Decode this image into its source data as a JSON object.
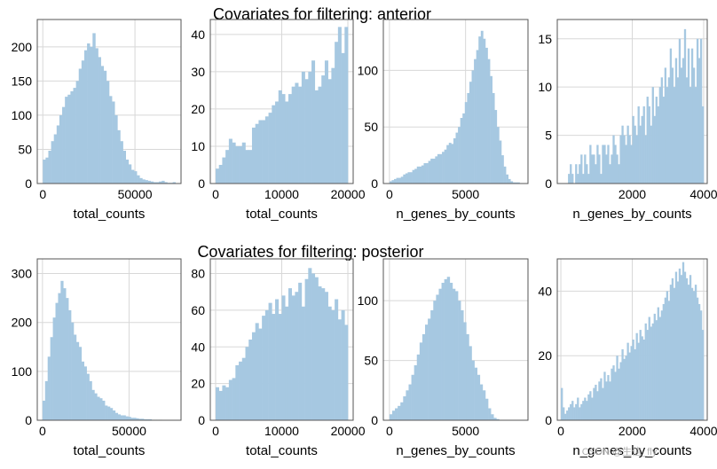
{
  "watermark": "CSDN @生信_fly",
  "colors": {
    "bar": "#a6c8e1",
    "grid": "#d8d8d8",
    "frame": "#555555"
  },
  "titles": [
    "Covariates for filtering: anterior",
    "Covariates for filtering: posterior"
  ],
  "chart_data": [
    {
      "type": "histogram",
      "row": 0,
      "col": 0,
      "xlabel": "total_counts",
      "ylabel": "",
      "xlim": [
        -3000,
        75000
      ],
      "ylim": [
        0,
        240
      ],
      "xticks": [
        0,
        50000
      ],
      "xtick_labels": [
        "0",
        "50000"
      ],
      "yticks": [
        0,
        50,
        100,
        150,
        200
      ],
      "ytick_labels": [
        "0",
        "50",
        "100",
        "150",
        "200"
      ],
      "bin_start": 0,
      "bin_width": 1500,
      "values": [
        35,
        38,
        48,
        62,
        72,
        85,
        100,
        112,
        127,
        130,
        135,
        140,
        150,
        168,
        180,
        195,
        205,
        200,
        220,
        198,
        185,
        172,
        165,
        150,
        128,
        120,
        100,
        78,
        62,
        48,
        35,
        28,
        20,
        18,
        12,
        8,
        6,
        5,
        4,
        3,
        2,
        2,
        3,
        4,
        2,
        1,
        1,
        2
      ]
    },
    {
      "type": "histogram",
      "row": 0,
      "col": 1,
      "xlabel": "total_counts",
      "ylabel": "",
      "xlim": [
        -800,
        20800
      ],
      "ylim": [
        0,
        44
      ],
      "xticks": [
        0,
        10000,
        20000
      ],
      "xtick_labels": [
        "0",
        "10000",
        "20000"
      ],
      "yticks": [
        0,
        10,
        20,
        30,
        40
      ],
      "ytick_labels": [
        "0",
        "10",
        "20",
        "30",
        "40"
      ],
      "bin_start": 0,
      "bin_width": 500,
      "values": [
        4,
        5,
        7,
        9,
        12,
        11,
        10,
        10,
        11,
        9,
        9,
        15,
        16,
        17,
        17,
        18,
        19,
        21,
        22,
        25,
        24,
        22,
        24,
        26,
        27,
        26,
        30,
        28,
        30,
        33,
        25,
        26,
        29,
        33,
        28,
        31,
        38,
        42,
        35,
        42
      ]
    },
    {
      "type": "histogram",
      "row": 0,
      "col": 2,
      "xlabel": "n_genes_by_counts",
      "ylabel": "",
      "xlim": [
        -400,
        9100
      ],
      "ylim": [
        0,
        145
      ],
      "xticks": [
        0,
        5000
      ],
      "xtick_labels": [
        "0",
        "5000"
      ],
      "yticks": [
        0,
        50,
        100
      ],
      "ytick_labels": [
        "0",
        "50",
        "100"
      ],
      "bin_start": 0,
      "bin_width": 150,
      "values": [
        2,
        3,
        4,
        5,
        5,
        6,
        8,
        9,
        10,
        10,
        12,
        13,
        15,
        15,
        16,
        18,
        18,
        20,
        22,
        22,
        24,
        26,
        26,
        28,
        30,
        34,
        36,
        35,
        40,
        45,
        50,
        58,
        62,
        72,
        80,
        90,
        100,
        110,
        118,
        130,
        135,
        128,
        120,
        110,
        95,
        80,
        65,
        50,
        38,
        25,
        15,
        8,
        4,
        2,
        1,
        1,
        1
      ]
    },
    {
      "type": "histogram",
      "row": 0,
      "col": 3,
      "xlabel": "n_genes_by_counts",
      "ylabel": "",
      "xlim": [
        -100,
        4100
      ],
      "ylim": [
        0,
        17
      ],
      "xticks": [
        2000,
        4000
      ],
      "xtick_labels": [
        "2000",
        "4000"
      ],
      "yticks": [
        0,
        5,
        10,
        15
      ],
      "ytick_labels": [
        "0",
        "5",
        "10",
        "15"
      ],
      "bin_start": 200,
      "bin_width": 50,
      "values": [
        1,
        2,
        1,
        0,
        2,
        1,
        2,
        3,
        1,
        3,
        2,
        1,
        4,
        3,
        3,
        2,
        4,
        3,
        1,
        4,
        4,
        3,
        4,
        2,
        3,
        5,
        4,
        3,
        2,
        5,
        6,
        5,
        4,
        6,
        5,
        4,
        7,
        6,
        5,
        8,
        6,
        7,
        8,
        5,
        9,
        8,
        6,
        10,
        7,
        9,
        8,
        10,
        11,
        9,
        12,
        10,
        11,
        14,
        12,
        10,
        13,
        11,
        15,
        12,
        13,
        16,
        11,
        14,
        10,
        14,
        12,
        10,
        15,
        13,
        15,
        8
      ]
    },
    {
      "type": "histogram",
      "row": 1,
      "col": 0,
      "xlabel": "total_counts",
      "ylabel": "",
      "xlim": [
        -3000,
        80000
      ],
      "ylim": [
        0,
        330
      ],
      "xticks": [
        0,
        50000
      ],
      "xtick_labels": [
        "0",
        "50000"
      ],
      "yticks": [
        0,
        100,
        200,
        300
      ],
      "ytick_labels": [
        "0",
        "100",
        "200",
        "300"
      ],
      "bin_start": 0,
      "bin_width": 1500,
      "values": [
        40,
        80,
        130,
        170,
        210,
        240,
        260,
        285,
        270,
        250,
        225,
        200,
        175,
        160,
        150,
        120,
        110,
        95,
        80,
        62,
        55,
        48,
        45,
        40,
        30,
        28,
        25,
        20,
        15,
        12,
        10,
        10,
        8,
        7,
        5,
        5,
        4,
        3,
        3,
        2,
        2,
        2,
        1,
        1,
        1,
        1
      ]
    },
    {
      "type": "histogram",
      "row": 1,
      "col": 1,
      "xlabel": "total_counts",
      "ylabel": "",
      "xlim": [
        -800,
        20800
      ],
      "ylim": [
        0,
        88
      ],
      "xticks": [
        0,
        10000,
        20000
      ],
      "xtick_labels": [
        "0",
        "10000",
        "20000"
      ],
      "yticks": [
        0,
        20,
        40,
        60,
        80
      ],
      "ytick_labels": [
        "0",
        "20",
        "40",
        "60",
        "80"
      ],
      "bin_start": 0,
      "bin_width": 500,
      "values": [
        18,
        16,
        19,
        18,
        22,
        23,
        30,
        32,
        34,
        40,
        44,
        48,
        53,
        50,
        57,
        60,
        64,
        58,
        66,
        58,
        68,
        62,
        72,
        68,
        70,
        75,
        62,
        77,
        83,
        80,
        78,
        73,
        72,
        70,
        62,
        60,
        66,
        55,
        60,
        52
      ]
    },
    {
      "type": "histogram",
      "row": 1,
      "col": 2,
      "xlabel": "n_genes_by_counts",
      "ylabel": "",
      "xlim": [
        -400,
        9100
      ],
      "ylim": [
        0,
        135
      ],
      "xticks": [
        0,
        5000
      ],
      "xtick_labels": [
        "0",
        "5000"
      ],
      "yticks": [
        0,
        50,
        100
      ],
      "ytick_labels": [
        "0",
        "50",
        "100"
      ],
      "bin_start": 0,
      "bin_width": 180,
      "values": [
        5,
        8,
        10,
        12,
        15,
        20,
        25,
        30,
        38,
        46,
        55,
        65,
        72,
        80,
        85,
        92,
        100,
        105,
        110,
        115,
        118,
        120,
        115,
        110,
        108,
        100,
        92,
        82,
        72,
        62,
        50,
        44,
        38,
        30,
        25,
        18,
        10,
        5,
        2,
        1
      ]
    },
    {
      "type": "histogram",
      "row": 1,
      "col": 3,
      "xlabel": "n_genes_by_counts",
      "ylabel": "",
      "xlim": [
        -100,
        4100
      ],
      "ylim": [
        0,
        50
      ],
      "xticks": [
        0,
        2000,
        4000
      ],
      "xtick_labels": [
        "0",
        "2000",
        "4000"
      ],
      "yticks": [
        0,
        20,
        40
      ],
      "ytick_labels": [
        "0",
        "20",
        "40"
      ],
      "bin_start": 0,
      "bin_width": 50,
      "values": [
        10,
        4,
        2,
        3,
        4,
        5,
        6,
        4,
        5,
        7,
        4,
        5,
        6,
        7,
        6,
        8,
        9,
        7,
        10,
        11,
        9,
        12,
        13,
        10,
        15,
        12,
        14,
        12,
        16,
        17,
        15,
        20,
        16,
        18,
        22,
        19,
        20,
        24,
        21,
        23,
        25,
        22,
        27,
        24,
        28,
        26,
        25,
        30,
        28,
        32,
        29,
        30,
        33,
        31,
        35,
        32,
        34,
        36,
        38,
        40,
        37,
        42,
        44,
        41,
        46,
        43,
        47,
        45,
        49,
        46,
        44,
        42,
        45,
        41,
        40,
        42,
        38,
        36,
        34,
        28
      ]
    }
  ]
}
